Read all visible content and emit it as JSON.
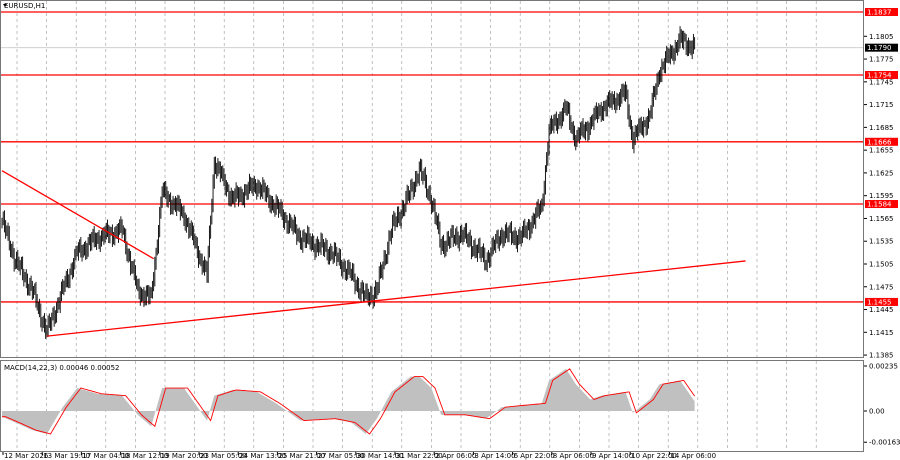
{
  "symbol_title": "EURUSD,H1",
  "macd_label": "MACD(14,22,3) 0.00046 0.00052",
  "colors": {
    "levels": "#ff0000",
    "candles": "#000000",
    "histogram": "#c0c0c0",
    "signal": "#ff0000",
    "current_price_bg": "#000000"
  },
  "chart_data": [
    {
      "type": "candlestick",
      "title": "EURUSD,H1",
      "ylim": [
        1.1385,
        1.1837
      ],
      "grid": "vertical dashed",
      "y_ticks": [
        "1.1805",
        "1.1775",
        "1.1745",
        "1.1715",
        "1.1685",
        "1.1655",
        "1.1625",
        "1.1595",
        "1.1565",
        "1.1535",
        "1.1505",
        "1.1475",
        "1.1445",
        "1.1415",
        "1.1385"
      ],
      "x_ticks": [
        "12 Mar 2026",
        "13 Mar 19:00",
        "17 Mar 04:00",
        "18 Mar 12:00",
        "19 Mar 20:00",
        "23 Mar 05:00",
        "24 Mar 13:00",
        "25 Mar 21:00",
        "27 Mar 05:00",
        "30 Mar 14:00",
        "31 Mar 22:00",
        "2 Apr 06:00",
        "3 Apr 14:00",
        "6 Apr 22:00",
        "8 Apr 06:00",
        "9 Apr 14:00",
        "10 Apr 22:00",
        "14 Apr 06:00"
      ],
      "current_price": "1.1790",
      "levels": [
        "1.1837",
        "1.1754",
        "1.1666",
        "1.1584",
        "1.1455"
      ],
      "trendlines": [
        {
          "from": [
            "2026-03-12 10:00",
            1.1628
          ],
          "to": [
            "2026-03-19 15:00",
            1.1512
          ]
        },
        {
          "from": [
            "2026-03-13 23:00",
            1.141
          ],
          "to": [
            "2026-04-16 23:00",
            1.1509
          ]
        }
      ],
      "price_path": [
        [
          "2026-03-12 10:00",
          1.1562
        ],
        [
          "2026-03-12 21:00",
          1.151
        ],
        [
          "2026-03-13 11:00",
          1.147
        ],
        [
          "2026-03-13 23:00",
          1.1415
        ],
        [
          "2026-03-16 12:00",
          1.147
        ],
        [
          "2026-03-17 00:00",
          1.152
        ],
        [
          "2026-03-17 17:00",
          1.154
        ],
        [
          "2026-03-18 13:00",
          1.155
        ],
        [
          "2026-03-19 02:00",
          1.147
        ],
        [
          "2026-03-19 13:00",
          1.146
        ],
        [
          "2026-03-19 22:00",
          1.16
        ],
        [
          "2026-03-20 16:00",
          1.157
        ],
        [
          "2026-03-23 11:00",
          1.149
        ],
        [
          "2026-03-23 17:00",
          1.164
        ],
        [
          "2026-03-24 08:00",
          1.159
        ],
        [
          "2026-03-25 04:00",
          1.161
        ],
        [
          "2026-03-25 20:00",
          1.158
        ],
        [
          "2026-03-26 16:00",
          1.154
        ],
        [
          "2026-03-27 18:00",
          1.152
        ],
        [
          "2026-03-30 10:00",
          1.149
        ],
        [
          "2026-03-30 22:00",
          1.146
        ],
        [
          "2026-03-31 07:00",
          1.147
        ],
        [
          "2026-03-31 19:00",
          1.155
        ],
        [
          "2026-04-01 11:00",
          1.16
        ],
        [
          "2026-04-01 18:00",
          1.163
        ],
        [
          "2026-04-02 04:00",
          1.159
        ],
        [
          "2026-04-02 12:00",
          1.153
        ],
        [
          "2026-04-03 05:00",
          1.1545
        ],
        [
          "2026-04-06 01:00",
          1.151
        ],
        [
          "2026-04-06 14:00",
          1.1545
        ],
        [
          "2026-04-07 06:00",
          1.154
        ],
        [
          "2026-04-07 23:00",
          1.158
        ],
        [
          "2026-04-08 05:00",
          1.168
        ],
        [
          "2026-04-08 19:00",
          1.171
        ],
        [
          "2026-04-09 03:00",
          1.167
        ],
        [
          "2026-04-09 15:00",
          1.169
        ],
        [
          "2026-04-10 00:00",
          1.171
        ],
        [
          "2026-04-10 20:00",
          1.173
        ],
        [
          "2026-04-13 02:00",
          1.167
        ],
        [
          "2026-04-13 16:00",
          1.17
        ],
        [
          "2026-04-14 00:00",
          1.176
        ],
        [
          "2026-04-14 17:00",
          1.18
        ],
        [
          "2026-04-15 05:00",
          1.179
        ]
      ]
    },
    {
      "type": "area",
      "title": "MACD(14,22,3)",
      "ylim": [
        -0.00163,
        0.00235
      ],
      "y_ticks": [
        "0.00235",
        "0.00",
        "-0.00163"
      ],
      "macd": [
        -0.0003,
        -0.0006,
        -0.001,
        -0.0012,
        0.0002,
        0.0012,
        0.0009,
        0.0008,
        -0.0002,
        -0.0008,
        0.0012,
        0.0012,
        -0.0005,
        0.0008,
        0.0011,
        0.001,
        0.0004,
        -0.0005,
        -0.0004,
        -0.0006,
        -0.0012,
        -0.0004,
        0.001,
        0.0018,
        0.0018,
        0.0012,
        -0.0002,
        -0.0002,
        -0.0004,
        0.0002,
        0.0003,
        0.0004,
        0.0016,
        0.0022,
        0.0014,
        0.0006,
        0.0008,
        0.001,
        -0.0001,
        0.0006,
        0.0014,
        0.0016,
        0.0005
      ]
    }
  ]
}
